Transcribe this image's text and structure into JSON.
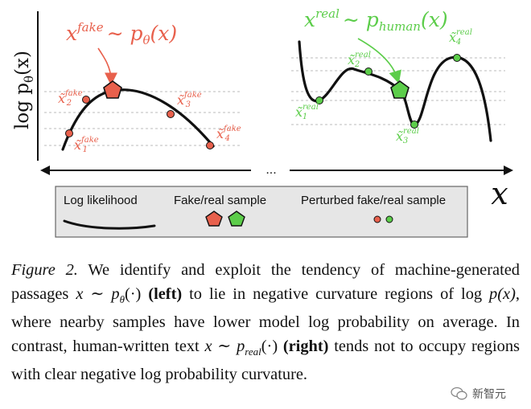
{
  "figure": {
    "y_axis_label": "log p",
    "y_axis_sub": "θ",
    "y_axis_arg": "(x)",
    "x_axis_symbol": "x",
    "axis_ellipsis": "...",
    "left_heading": {
      "base": "x",
      "sup": "fake",
      "rel": "∼ p",
      "sub": "θ",
      "arg": "(x)"
    },
    "right_heading": {
      "base": "x",
      "sup": "real",
      "rel": "∼ p",
      "sub": "human",
      "arg": "(x)"
    },
    "fake_points": [
      {
        "sup": "fake",
        "sub": "1"
      },
      {
        "sup": "fake",
        "sub": "2"
      },
      {
        "sup": "fake",
        "sub": "3"
      },
      {
        "sup": "fake",
        "sub": "4"
      }
    ],
    "real_points": [
      {
        "sup": "real",
        "sub": "1"
      },
      {
        "sup": "real",
        "sub": "2"
      },
      {
        "sup": "real",
        "sub": "3"
      },
      {
        "sup": "real",
        "sub": "4"
      }
    ],
    "colors": {
      "fake": "#e8604c",
      "real": "#5ccd4a",
      "curve": "#111111",
      "dash": "#bbbbbb"
    },
    "legend": {
      "log_likelihood": "Log likelihood",
      "sample": "Fake/real sample",
      "perturbed": "Perturbed fake/real sample"
    }
  },
  "caption": {
    "label": "Figure 2.",
    "t1": " We identify and exploit the tendency of machine-generated passages ",
    "m1": "x ∼ p",
    "m1sub": "θ",
    "m1b": "(·)",
    "b1": "(left)",
    "t2": " to lie in negative curvature regions of log ",
    "m2": "p(x)",
    "t3": ", where nearby samples have lower model log probability on average.  In contrast, human-written text ",
    "m3": "x ∼ p",
    "m3sub": "real",
    "m3b": "(·)",
    "b2": "(right)",
    "t4": " tends not to occupy regions with clear negative log probability curvature."
  },
  "watermark": {
    "text": "新智元"
  }
}
